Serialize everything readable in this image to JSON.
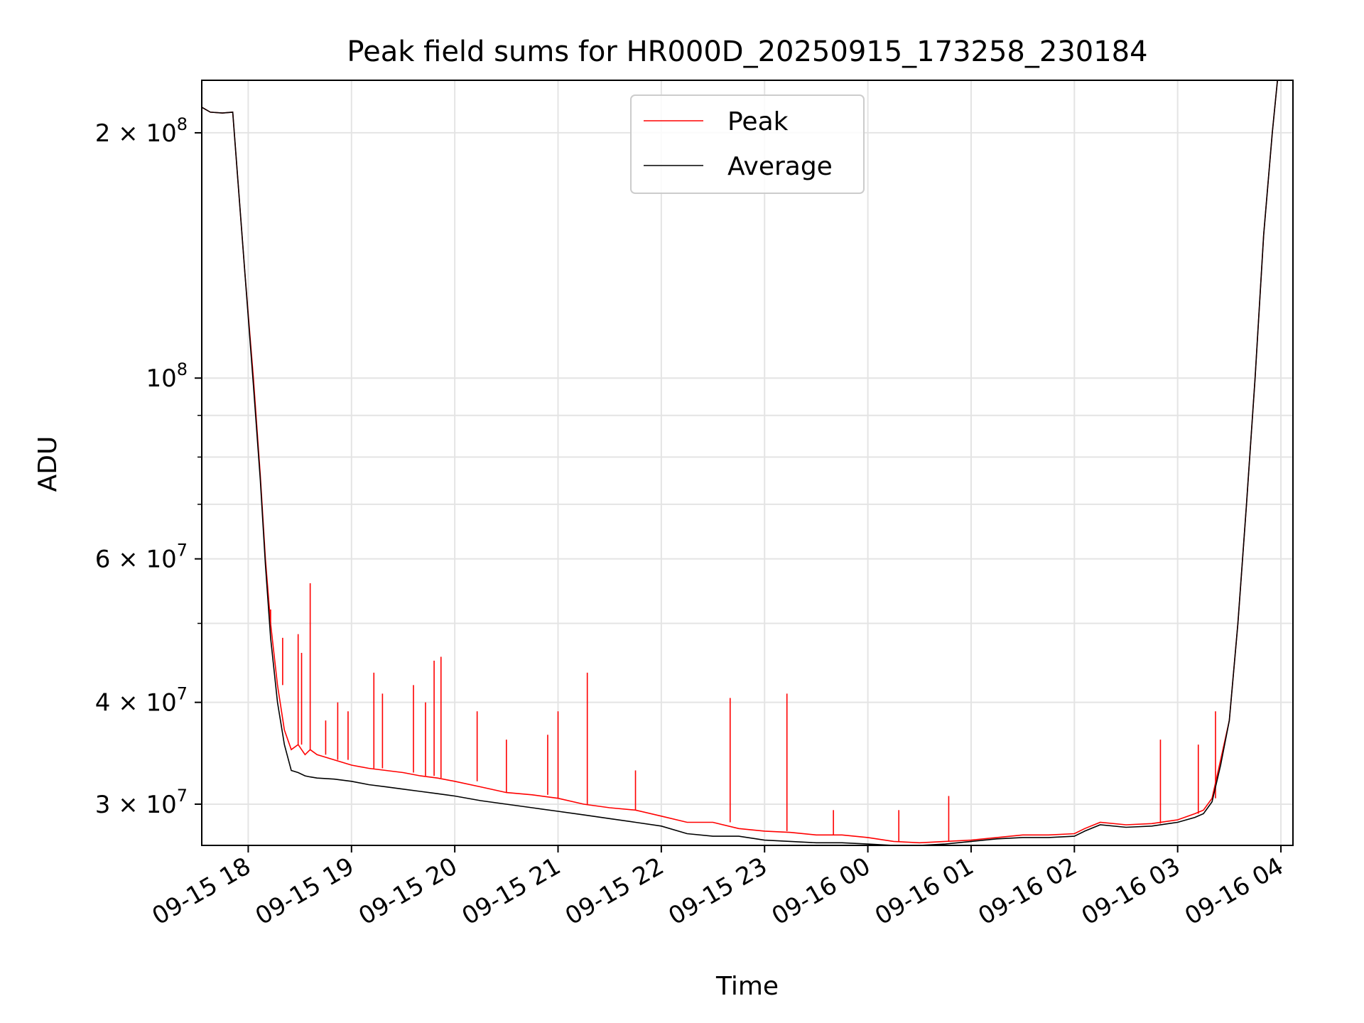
{
  "chart_data": {
    "type": "line",
    "title": "Peak field sums for HR000D_20250915_173258_230184",
    "xlabel": "Time",
    "ylabel": "ADU",
    "yscale": "log",
    "grid": true,
    "legend_position": "top-center",
    "xlim": [
      "2025-09-15T17:33",
      "2025-09-16T04:07"
    ],
    "ylim": [
      26700000,
      232000000
    ],
    "x_ticks": [
      {
        "x": "2025-09-15T18:00",
        "label": "09-15 18"
      },
      {
        "x": "2025-09-15T19:00",
        "label": "09-15 19"
      },
      {
        "x": "2025-09-15T20:00",
        "label": "09-15 20"
      },
      {
        "x": "2025-09-15T21:00",
        "label": "09-15 21"
      },
      {
        "x": "2025-09-15T22:00",
        "label": "09-15 22"
      },
      {
        "x": "2025-09-15T23:00",
        "label": "09-15 23"
      },
      {
        "x": "2025-09-16T00:00",
        "label": "09-16 00"
      },
      {
        "x": "2025-09-16T01:00",
        "label": "09-16 01"
      },
      {
        "x": "2025-09-16T02:00",
        "label": "09-16 02"
      },
      {
        "x": "2025-09-16T03:00",
        "label": "09-16 03"
      },
      {
        "x": "2025-09-16T04:00",
        "label": "09-16 04"
      }
    ],
    "y_ticks": [
      {
        "y": 200000000,
        "base": "2 × 10",
        "exp": "8"
      },
      {
        "y": 100000000,
        "base": "10",
        "exp": "8"
      },
      {
        "y": 60000000,
        "base": "6 × 10",
        "exp": "7"
      },
      {
        "y": 40000000,
        "base": "4 × 10",
        "exp": "7"
      },
      {
        "y": 30000000,
        "base": "3 × 10",
        "exp": "7"
      }
    ],
    "y_minor_ticks": [
      50000000,
      70000000,
      80000000,
      90000000
    ],
    "series": [
      {
        "name": "Peak",
        "color": "#ff0000",
        "x": [
          "2025-09-15T17:33",
          "2025-09-15T17:38",
          "2025-09-15T17:45",
          "2025-09-15T17:51",
          "2025-09-15T17:58",
          "2025-09-15T18:03",
          "2025-09-15T18:07",
          "2025-09-15T18:10",
          "2025-09-15T18:13",
          "2025-09-15T18:17",
          "2025-09-15T18:21",
          "2025-09-15T18:25",
          "2025-09-15T18:29",
          "2025-09-15T18:33",
          "2025-09-15T18:36",
          "2025-09-15T18:40",
          "2025-09-15T18:50",
          "2025-09-15T19:00",
          "2025-09-15T19:10",
          "2025-09-15T19:20",
          "2025-09-15T19:30",
          "2025-09-15T19:40",
          "2025-09-15T19:50",
          "2025-09-15T20:00",
          "2025-09-15T20:15",
          "2025-09-15T20:30",
          "2025-09-15T20:45",
          "2025-09-15T21:00",
          "2025-09-15T21:15",
          "2025-09-15T21:30",
          "2025-09-15T21:45",
          "2025-09-15T22:00",
          "2025-09-15T22:15",
          "2025-09-15T22:30",
          "2025-09-15T22:45",
          "2025-09-15T23:00",
          "2025-09-15T23:15",
          "2025-09-15T23:30",
          "2025-09-15T23:45",
          "2025-09-16T00:00",
          "2025-09-16T00:15",
          "2025-09-16T00:30",
          "2025-09-16T00:45",
          "2025-09-16T01:00",
          "2025-09-16T01:15",
          "2025-09-16T01:30",
          "2025-09-16T01:45",
          "2025-09-16T02:00",
          "2025-09-16T02:06",
          "2025-09-16T02:15",
          "2025-09-16T02:30",
          "2025-09-16T02:45",
          "2025-09-16T03:00",
          "2025-09-16T03:10",
          "2025-09-16T03:15",
          "2025-09-16T03:20",
          "2025-09-16T03:25",
          "2025-09-16T03:30",
          "2025-09-16T03:35",
          "2025-09-16T03:40",
          "2025-09-16T03:45",
          "2025-09-16T03:50",
          "2025-09-16T03:55",
          "2025-09-16T03:58"
        ],
        "values": [
          215000000,
          212000000,
          211500000,
          212000000,
          135000000,
          100000000,
          76000000,
          60000000,
          50000000,
          42000000,
          37000000,
          35000000,
          35500000,
          34500000,
          35000000,
          34500000,
          34000000,
          33500000,
          33200000,
          33000000,
          32800000,
          32500000,
          32300000,
          32000000,
          31500000,
          31000000,
          30800000,
          30500000,
          30000000,
          29700000,
          29500000,
          29000000,
          28500000,
          28500000,
          28000000,
          27800000,
          27700000,
          27500000,
          27500000,
          27300000,
          27000000,
          26900000,
          27000000,
          27100000,
          27300000,
          27500000,
          27500000,
          27600000,
          28000000,
          28500000,
          28300000,
          28400000,
          28700000,
          29200000,
          29500000,
          30500000,
          34000000,
          38000000,
          50000000,
          70000000,
          100000000,
          150000000,
          200000000,
          232000000
        ]
      },
      {
        "name": "Average",
        "color": "#000000",
        "x": [
          "2025-09-15T17:33",
          "2025-09-15T17:38",
          "2025-09-15T17:45",
          "2025-09-15T17:51",
          "2025-09-15T17:58",
          "2025-09-15T18:03",
          "2025-09-15T18:07",
          "2025-09-15T18:10",
          "2025-09-15T18:13",
          "2025-09-15T18:17",
          "2025-09-15T18:21",
          "2025-09-15T18:25",
          "2025-09-15T18:29",
          "2025-09-15T18:33",
          "2025-09-15T18:36",
          "2025-09-15T18:40",
          "2025-09-15T18:50",
          "2025-09-15T19:00",
          "2025-09-15T19:10",
          "2025-09-15T19:20",
          "2025-09-15T19:30",
          "2025-09-15T19:40",
          "2025-09-15T19:50",
          "2025-09-15T20:00",
          "2025-09-15T20:15",
          "2025-09-15T20:30",
          "2025-09-15T20:45",
          "2025-09-15T21:00",
          "2025-09-15T21:15",
          "2025-09-15T21:30",
          "2025-09-15T21:45",
          "2025-09-15T22:00",
          "2025-09-15T22:15",
          "2025-09-15T22:30",
          "2025-09-15T22:45",
          "2025-09-15T23:00",
          "2025-09-15T23:15",
          "2025-09-15T23:30",
          "2025-09-15T23:45",
          "2025-09-16T00:00",
          "2025-09-16T00:15",
          "2025-09-16T00:30",
          "2025-09-16T00:45",
          "2025-09-16T01:00",
          "2025-09-16T01:15",
          "2025-09-16T01:30",
          "2025-09-16T01:45",
          "2025-09-16T02:00",
          "2025-09-16T02:06",
          "2025-09-16T02:15",
          "2025-09-16T02:30",
          "2025-09-16T02:45",
          "2025-09-16T03:00",
          "2025-09-16T03:10",
          "2025-09-16T03:15",
          "2025-09-16T03:20",
          "2025-09-16T03:25",
          "2025-09-16T03:30",
          "2025-09-16T03:35",
          "2025-09-16T03:40",
          "2025-09-16T03:45",
          "2025-09-16T03:50",
          "2025-09-16T03:55",
          "2025-09-16T03:58"
        ],
        "values": [
          215000000,
          212000000,
          211500000,
          212000000,
          135000000,
          98000000,
          75000000,
          59000000,
          48000000,
          40000000,
          35500000,
          33000000,
          32800000,
          32500000,
          32400000,
          32300000,
          32200000,
          32000000,
          31700000,
          31500000,
          31300000,
          31100000,
          30900000,
          30700000,
          30300000,
          30000000,
          29700000,
          29400000,
          29100000,
          28800000,
          28500000,
          28200000,
          27600000,
          27400000,
          27400000,
          27100000,
          27000000,
          26900000,
          26900000,
          26800000,
          26700000,
          26700000,
          26800000,
          27000000,
          27200000,
          27300000,
          27300000,
          27400000,
          27800000,
          28300000,
          28100000,
          28200000,
          28500000,
          28900000,
          29200000,
          30200000,
          33500000,
          38000000,
          50000000,
          70000000,
          100000000,
          150000000,
          200000000,
          232000000
        ]
      }
    ],
    "peak_spikes": [
      {
        "x": "2025-09-15T18:13",
        "y": 52000000
      },
      {
        "x": "2025-09-15T18:15",
        "y": 50000000
      },
      {
        "x": "2025-09-15T18:20",
        "y": 48000000
      },
      {
        "x": "2025-09-15T18:29",
        "y": 48500000
      },
      {
        "x": "2025-09-15T18:31",
        "y": 46000000
      },
      {
        "x": "2025-09-15T18:36",
        "y": 56000000
      },
      {
        "x": "2025-09-15T18:45",
        "y": 38000000
      },
      {
        "x": "2025-09-15T18:52",
        "y": 40000000
      },
      {
        "x": "2025-09-15T18:58",
        "y": 39000000
      },
      {
        "x": "2025-09-15T19:13",
        "y": 43500000
      },
      {
        "x": "2025-09-15T19:18",
        "y": 41000000
      },
      {
        "x": "2025-09-15T19:36",
        "y": 42000000
      },
      {
        "x": "2025-09-15T19:43",
        "y": 40000000
      },
      {
        "x": "2025-09-15T19:48",
        "y": 45000000
      },
      {
        "x": "2025-09-15T19:52",
        "y": 45500000
      },
      {
        "x": "2025-09-15T20:13",
        "y": 39000000
      },
      {
        "x": "2025-09-15T20:30",
        "y": 36000000
      },
      {
        "x": "2025-09-15T20:54",
        "y": 36500000
      },
      {
        "x": "2025-09-15T21:00",
        "y": 39000000
      },
      {
        "x": "2025-09-15T21:17",
        "y": 43500000
      },
      {
        "x": "2025-09-15T21:45",
        "y": 33000000
      },
      {
        "x": "2025-09-15T22:40",
        "y": 40500000
      },
      {
        "x": "2025-09-15T23:13",
        "y": 41000000
      },
      {
        "x": "2025-09-15T23:40",
        "y": 29500000
      },
      {
        "x": "2025-09-16T00:18",
        "y": 29500000
      },
      {
        "x": "2025-09-16T00:47",
        "y": 30700000
      },
      {
        "x": "2025-09-16T02:50",
        "y": 36000000
      },
      {
        "x": "2025-09-16T03:12",
        "y": 35500000
      },
      {
        "x": "2025-09-16T03:22",
        "y": 39000000
      }
    ]
  }
}
